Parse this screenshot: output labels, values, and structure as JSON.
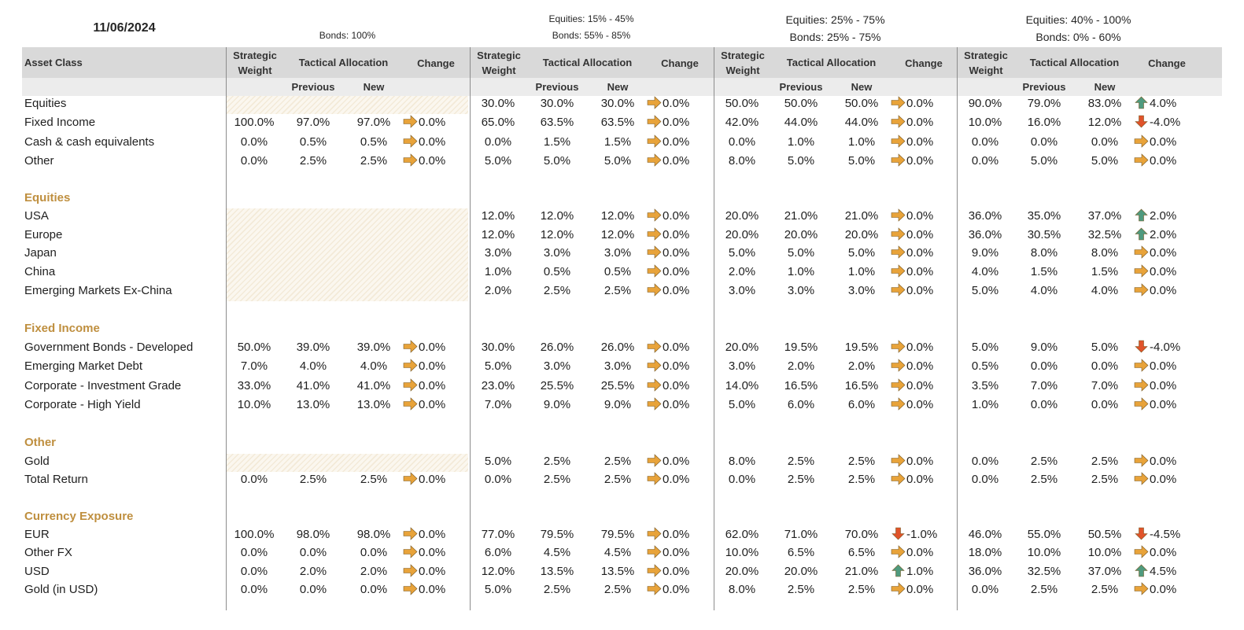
{
  "date": "11/06/2024",
  "colors": {
    "accent": "#bf8f3f",
    "header_bg": "#d9d9d9",
    "subheader_bg": "#ececec",
    "up": "#4f9a7e",
    "down": "#e0532a",
    "flat": "#e8a33a"
  },
  "portfolios": [
    {
      "title_lines": [
        "",
        "Bonds: 100%"
      ]
    },
    {
      "title_lines": [
        "Equities: 15% - 45%",
        "Bonds: 55% - 85%"
      ]
    },
    {
      "title_lines": [
        "Equities: 25% - 75%",
        "Bonds: 25% - 75%"
      ]
    },
    {
      "title_lines": [
        "Equities: 40% - 100%",
        "Bonds: 0% - 60%"
      ]
    }
  ],
  "headers": {
    "asset_class": "Asset Class",
    "strategic_1": "Strategic",
    "strategic_2": "Weight",
    "tactical": "Tactical Allocation",
    "change": "Change",
    "previous": "Previous",
    "new": "New"
  },
  "rows": [
    {
      "type": "item",
      "label": "Equities",
      "vals": [
        null,
        [
          "30.0%",
          "30.0%",
          "30.0%",
          [
            "flat",
            "0.0%"
          ]
        ],
        [
          "50.0%",
          "50.0%",
          "50.0%",
          [
            "flat",
            "0.0%"
          ]
        ],
        [
          "90.0%",
          "79.0%",
          "83.0%",
          [
            "up",
            "4.0%"
          ]
        ]
      ]
    },
    {
      "type": "item",
      "label": "Fixed Income",
      "vals": [
        [
          "100.0%",
          "97.0%",
          "97.0%",
          [
            "flat",
            "0.0%"
          ]
        ],
        [
          "65.0%",
          "63.5%",
          "63.5%",
          [
            "flat",
            "0.0%"
          ]
        ],
        [
          "42.0%",
          "44.0%",
          "44.0%",
          [
            "flat",
            "0.0%"
          ]
        ],
        [
          "10.0%",
          "16.0%",
          "12.0%",
          [
            "down",
            "-4.0%"
          ]
        ]
      ]
    },
    {
      "type": "item",
      "label": "Cash & cash equivalents",
      "vals": [
        [
          "0.0%",
          "0.5%",
          "0.5%",
          [
            "flat",
            "0.0%"
          ]
        ],
        [
          "0.0%",
          "1.5%",
          "1.5%",
          [
            "flat",
            "0.0%"
          ]
        ],
        [
          "0.0%",
          "1.0%",
          "1.0%",
          [
            "flat",
            "0.0%"
          ]
        ],
        [
          "0.0%",
          "0.0%",
          "0.0%",
          [
            "flat",
            "0.0%"
          ]
        ]
      ]
    },
    {
      "type": "item",
      "label": "Other",
      "vals": [
        [
          "0.0%",
          "2.5%",
          "2.5%",
          [
            "flat",
            "0.0%"
          ]
        ],
        [
          "5.0%",
          "5.0%",
          "5.0%",
          [
            "flat",
            "0.0%"
          ]
        ],
        [
          "8.0%",
          "5.0%",
          "5.0%",
          [
            "flat",
            "0.0%"
          ]
        ],
        [
          "0.0%",
          "5.0%",
          "5.0%",
          [
            "flat",
            "0.0%"
          ]
        ]
      ]
    },
    {
      "type": "section",
      "label": "Equities"
    },
    {
      "type": "item",
      "label": "USA",
      "vals": [
        null,
        [
          "12.0%",
          "12.0%",
          "12.0%",
          [
            "flat",
            "0.0%"
          ]
        ],
        [
          "20.0%",
          "21.0%",
          "21.0%",
          [
            "flat",
            "0.0%"
          ]
        ],
        [
          "36.0%",
          "35.0%",
          "37.0%",
          [
            "up",
            "2.0%"
          ]
        ]
      ]
    },
    {
      "type": "item",
      "label": "Europe",
      "vals": [
        null,
        [
          "12.0%",
          "12.0%",
          "12.0%",
          [
            "flat",
            "0.0%"
          ]
        ],
        [
          "20.0%",
          "20.0%",
          "20.0%",
          [
            "flat",
            "0.0%"
          ]
        ],
        [
          "36.0%",
          "30.5%",
          "32.5%",
          [
            "up",
            "2.0%"
          ]
        ]
      ]
    },
    {
      "type": "item",
      "label": "Japan",
      "vals": [
        null,
        [
          "3.0%",
          "3.0%",
          "3.0%",
          [
            "flat",
            "0.0%"
          ]
        ],
        [
          "5.0%",
          "5.0%",
          "5.0%",
          [
            "flat",
            "0.0%"
          ]
        ],
        [
          "9.0%",
          "8.0%",
          "8.0%",
          [
            "flat",
            "0.0%"
          ]
        ]
      ]
    },
    {
      "type": "item",
      "label": "China",
      "vals": [
        null,
        [
          "1.0%",
          "0.5%",
          "0.5%",
          [
            "flat",
            "0.0%"
          ]
        ],
        [
          "2.0%",
          "1.0%",
          "1.0%",
          [
            "flat",
            "0.0%"
          ]
        ],
        [
          "4.0%",
          "1.5%",
          "1.5%",
          [
            "flat",
            "0.0%"
          ]
        ]
      ]
    },
    {
      "type": "item",
      "label": "Emerging Markets Ex-China",
      "vals": [
        null,
        [
          "2.0%",
          "2.5%",
          "2.5%",
          [
            "flat",
            "0.0%"
          ]
        ],
        [
          "3.0%",
          "3.0%",
          "3.0%",
          [
            "flat",
            "0.0%"
          ]
        ],
        [
          "5.0%",
          "4.0%",
          "4.0%",
          [
            "flat",
            "0.0%"
          ]
        ]
      ]
    },
    {
      "type": "section",
      "label": "Fixed Income"
    },
    {
      "type": "item",
      "label": "Government Bonds - Developed",
      "vals": [
        [
          "50.0%",
          "39.0%",
          "39.0%",
          [
            "flat",
            "0.0%"
          ]
        ],
        [
          "30.0%",
          "26.0%",
          "26.0%",
          [
            "flat",
            "0.0%"
          ]
        ],
        [
          "20.0%",
          "19.5%",
          "19.5%",
          [
            "flat",
            "0.0%"
          ]
        ],
        [
          "5.0%",
          "9.0%",
          "5.0%",
          [
            "down",
            "-4.0%"
          ]
        ]
      ]
    },
    {
      "type": "item",
      "label": "Emerging Market Debt",
      "vals": [
        [
          "7.0%",
          "4.0%",
          "4.0%",
          [
            "flat",
            "0.0%"
          ]
        ],
        [
          "5.0%",
          "3.0%",
          "3.0%",
          [
            "flat",
            "0.0%"
          ]
        ],
        [
          "3.0%",
          "2.0%",
          "2.0%",
          [
            "flat",
            "0.0%"
          ]
        ],
        [
          "0.5%",
          "0.0%",
          "0.0%",
          [
            "flat",
            "0.0%"
          ]
        ]
      ]
    },
    {
      "type": "item",
      "label": "Corporate - Investment Grade",
      "vals": [
        [
          "33.0%",
          "41.0%",
          "41.0%",
          [
            "flat",
            "0.0%"
          ]
        ],
        [
          "23.0%",
          "25.5%",
          "25.5%",
          [
            "flat",
            "0.0%"
          ]
        ],
        [
          "14.0%",
          "16.5%",
          "16.5%",
          [
            "flat",
            "0.0%"
          ]
        ],
        [
          "3.5%",
          "7.0%",
          "7.0%",
          [
            "flat",
            "0.0%"
          ]
        ]
      ]
    },
    {
      "type": "item",
      "label": "Corporate - High Yield",
      "vals": [
        [
          "10.0%",
          "13.0%",
          "13.0%",
          [
            "flat",
            "0.0%"
          ]
        ],
        [
          "7.0%",
          "9.0%",
          "9.0%",
          [
            "flat",
            "0.0%"
          ]
        ],
        [
          "5.0%",
          "6.0%",
          "6.0%",
          [
            "flat",
            "0.0%"
          ]
        ],
        [
          "1.0%",
          "0.0%",
          "0.0%",
          [
            "flat",
            "0.0%"
          ]
        ]
      ]
    },
    {
      "type": "section",
      "label": "Other"
    },
    {
      "type": "item",
      "label": "Gold",
      "vals": [
        null,
        [
          "5.0%",
          "2.5%",
          "2.5%",
          [
            "flat",
            "0.0%"
          ]
        ],
        [
          "8.0%",
          "2.5%",
          "2.5%",
          [
            "flat",
            "0.0%"
          ]
        ],
        [
          "0.0%",
          "2.5%",
          "2.5%",
          [
            "flat",
            "0.0%"
          ]
        ]
      ]
    },
    {
      "type": "item",
      "label": "Total Return",
      "vals": [
        [
          "0.0%",
          "2.5%",
          "2.5%",
          [
            "flat",
            "0.0%"
          ]
        ],
        [
          "0.0%",
          "2.5%",
          "2.5%",
          [
            "flat",
            "0.0%"
          ]
        ],
        [
          "0.0%",
          "2.5%",
          "2.5%",
          [
            "flat",
            "0.0%"
          ]
        ],
        [
          "0.0%",
          "2.5%",
          "2.5%",
          [
            "flat",
            "0.0%"
          ]
        ]
      ]
    },
    {
      "type": "section",
      "label": "Currency Exposure"
    },
    {
      "type": "item",
      "label": "EUR",
      "vals": [
        [
          "100.0%",
          "98.0%",
          "98.0%",
          [
            "flat",
            "0.0%"
          ]
        ],
        [
          "77.0%",
          "79.5%",
          "79.5%",
          [
            "flat",
            "0.0%"
          ]
        ],
        [
          "62.0%",
          "71.0%",
          "70.0%",
          [
            "down",
            "-1.0%"
          ]
        ],
        [
          "46.0%",
          "55.0%",
          "50.5%",
          [
            "down",
            "-4.5%"
          ]
        ]
      ]
    },
    {
      "type": "item",
      "label": "Other FX",
      "vals": [
        [
          "0.0%",
          "0.0%",
          "0.0%",
          [
            "flat",
            "0.0%"
          ]
        ],
        [
          "6.0%",
          "4.5%",
          "4.5%",
          [
            "flat",
            "0.0%"
          ]
        ],
        [
          "10.0%",
          "6.5%",
          "6.5%",
          [
            "flat",
            "0.0%"
          ]
        ],
        [
          "18.0%",
          "10.0%",
          "10.0%",
          [
            "flat",
            "0.0%"
          ]
        ]
      ]
    },
    {
      "type": "item",
      "label": "USD",
      "vals": [
        [
          "0.0%",
          "2.0%",
          "2.0%",
          [
            "flat",
            "0.0%"
          ]
        ],
        [
          "12.0%",
          "13.5%",
          "13.5%",
          [
            "flat",
            "0.0%"
          ]
        ],
        [
          "20.0%",
          "20.0%",
          "21.0%",
          [
            "up",
            "1.0%"
          ]
        ],
        [
          "36.0%",
          "32.5%",
          "37.0%",
          [
            "up",
            "4.5%"
          ]
        ]
      ]
    },
    {
      "type": "item",
      "label": "Gold (in USD)",
      "vals": [
        [
          "0.0%",
          "0.0%",
          "0.0%",
          [
            "flat",
            "0.0%"
          ]
        ],
        [
          "5.0%",
          "2.5%",
          "2.5%",
          [
            "flat",
            "0.0%"
          ]
        ],
        [
          "8.0%",
          "2.5%",
          "2.5%",
          [
            "flat",
            "0.0%"
          ]
        ],
        [
          "0.0%",
          "2.5%",
          "2.5%",
          [
            "flat",
            "0.0%"
          ]
        ]
      ]
    }
  ]
}
